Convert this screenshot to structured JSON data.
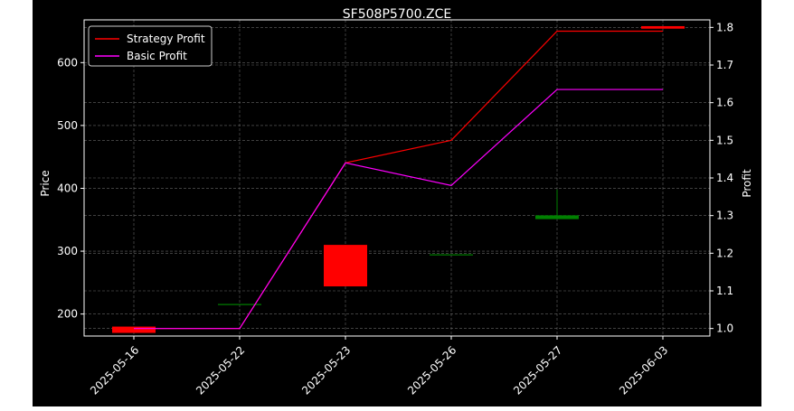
{
  "chart_data": {
    "type": "candlestick+line",
    "title": "SF508P5700.ZCE",
    "ylabel": "Price",
    "y2label": "Profit",
    "categories": [
      "2025-05-16",
      "2025-05-22",
      "2025-05-23",
      "2025-05-26",
      "2025-05-27",
      "2025-06-03"
    ],
    "ylim": [
      165,
      668
    ],
    "y2lim": [
      0.98,
      1.82
    ],
    "yticks": [
      200,
      300,
      400,
      500,
      600
    ],
    "y2ticks": [
      1.0,
      1.1,
      1.2,
      1.3,
      1.4,
      1.5,
      1.6,
      1.7,
      1.8
    ],
    "grid": true,
    "legend_position": "top-left",
    "candles": [
      {
        "date": "2025-05-16",
        "open": 180,
        "close": 170,
        "high": 180,
        "low": 170
      },
      {
        "date": "2025-05-22",
        "open": 216,
        "close": 216,
        "high": 216,
        "low": 216
      },
      {
        "date": "2025-05-23",
        "open": 310,
        "close": 244,
        "high": 310,
        "low": 244
      },
      {
        "date": "2025-05-26",
        "open": 295,
        "close": 295,
        "high": 295,
        "low": 295
      },
      {
        "date": "2025-05-27",
        "open": 351,
        "close": 357,
        "high": 398,
        "low": 351
      },
      {
        "date": "2025-06-03",
        "open": 658,
        "close": 654,
        "high": 658,
        "low": 654
      }
    ],
    "series": [
      {
        "name": "Strategy Profit",
        "color": "#ff0000",
        "axis": "right",
        "values": [
          1.0,
          1.0,
          1.44,
          1.5,
          1.79,
          1.79
        ]
      },
      {
        "name": "Basic Profit",
        "color": "#ff00ff",
        "axis": "right",
        "values": [
          1.0,
          1.0,
          1.44,
          1.38,
          1.635,
          1.635
        ]
      }
    ],
    "colors": {
      "up": "#008000",
      "down": "#ff0000",
      "background": "#000000",
      "axes": "#ffffff",
      "grid": "#808080"
    }
  }
}
